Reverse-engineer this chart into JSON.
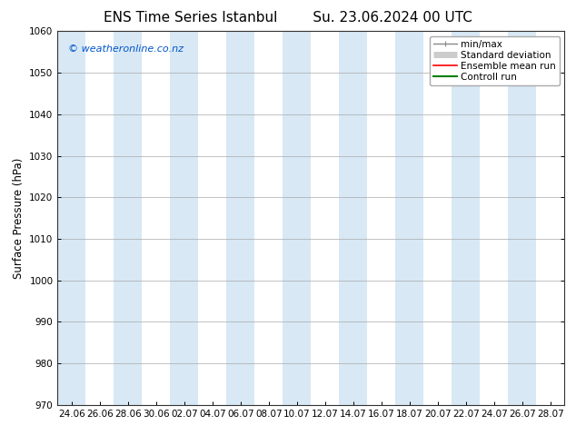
{
  "title_left": "ENS Time Series Istanbul",
  "title_right": "Su. 23.06.2024 00 UTC",
  "ylabel": "Surface Pressure (hPa)",
  "ylim": [
    970,
    1060
  ],
  "yticks": [
    970,
    980,
    990,
    1000,
    1010,
    1020,
    1030,
    1040,
    1050,
    1060
  ],
  "xtick_labels": [
    "24.06",
    "26.06",
    "28.06",
    "30.06",
    "02.07",
    "04.07",
    "06.07",
    "08.07",
    "10.07",
    "12.07",
    "14.07",
    "16.07",
    "18.07",
    "20.07",
    "22.07",
    "24.07",
    "26.07",
    "28.07"
  ],
  "watermark": "© weatheronline.co.nz",
  "bg_color": "#ffffff",
  "plot_bg_color": "#ffffff",
  "band_color_light": "#d8e8f5",
  "band_color_white": "#ffffff",
  "legend_items": [
    {
      "label": "min/max",
      "color": "#888888",
      "lw": 1.0,
      "style": "minmax"
    },
    {
      "label": "Standard deviation",
      "color": "#cccccc",
      "lw": 5,
      "style": "thick"
    },
    {
      "label": "Ensemble mean run",
      "color": "#ff0000",
      "lw": 1.2,
      "style": "line"
    },
    {
      "label": "Controll run",
      "color": "#008000",
      "lw": 1.5,
      "style": "line"
    }
  ],
  "figsize": [
    6.34,
    4.9
  ],
  "dpi": 100,
  "light_bands": [
    0,
    2,
    4,
    6,
    8,
    10,
    12,
    14,
    16
  ],
  "spine_color": "#333333",
  "tick_label_fontsize": 7.5,
  "ylabel_fontsize": 8.5,
  "title_fontsize": 11,
  "watermark_fontsize": 8,
  "watermark_color": "#0055cc",
  "legend_fontsize": 7.5
}
